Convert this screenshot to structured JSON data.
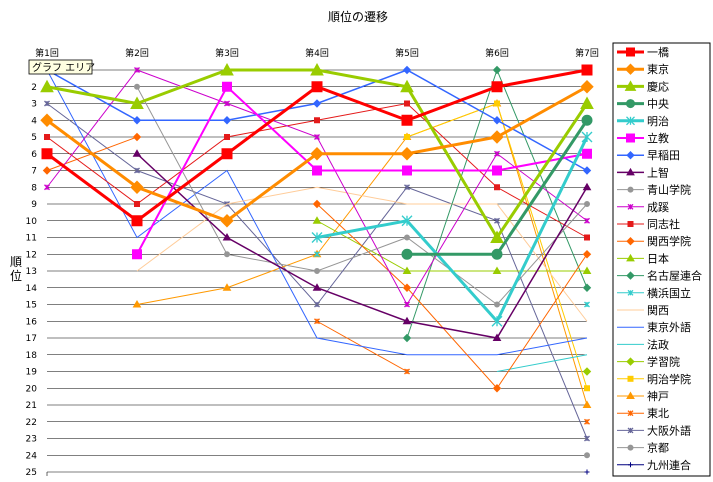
{
  "chart_data": {
    "type": "line",
    "title": "順位の遷移",
    "xlabel": "",
    "ylabel": "順位",
    "tooltip": "グラフ エリア",
    "categories": [
      "第1回",
      "第2回",
      "第3回",
      "第4回",
      "第5回",
      "第6回",
      "第7回"
    ],
    "ylim": [
      1,
      25
    ],
    "y_reversed": true,
    "y_ticks": [
      "1",
      "2",
      "3",
      "4",
      "5",
      "6",
      "7",
      "8",
      "9",
      "10",
      "11",
      "12",
      "13",
      "14",
      "15",
      "16",
      "17",
      "18",
      "19",
      "20",
      "21",
      "22",
      "23",
      "24",
      "25"
    ],
    "grid": true,
    "legend_position": "right",
    "series": [
      {
        "name": "一橋",
        "color": "#ff0000",
        "marker": "square",
        "width": 3,
        "values": [
          6,
          10,
          6,
          2,
          4,
          2,
          1
        ]
      },
      {
        "name": "東京",
        "color": "#ff8c00",
        "marker": "diamond",
        "width": 3,
        "values": [
          4,
          8,
          10,
          6,
          6,
          5,
          2
        ]
      },
      {
        "name": "慶応",
        "color": "#99cc00",
        "marker": "triangle",
        "width": 3,
        "values": [
          2,
          3,
          1,
          1,
          2,
          11,
          3
        ]
      },
      {
        "name": "中央",
        "color": "#339966",
        "marker": "circle",
        "width": 3,
        "values": [
          null,
          null,
          null,
          null,
          12,
          12,
          4
        ]
      },
      {
        "name": "明治",
        "color": "#33cccc",
        "marker": "star",
        "width": 3,
        "values": [
          null,
          null,
          null,
          11,
          10,
          16,
          5
        ]
      },
      {
        "name": "立教",
        "color": "#ff00ff",
        "marker": "square",
        "width": 2,
        "values": [
          null,
          12,
          2,
          7,
          7,
          7,
          6
        ]
      },
      {
        "name": "早稲田",
        "color": "#3366ff",
        "marker": "diamond",
        "width": 1.5,
        "values": [
          1,
          4,
          4,
          3,
          1,
          4,
          7
        ]
      },
      {
        "name": "上智",
        "color": "#660066",
        "marker": "triangle",
        "width": 1.5,
        "values": [
          null,
          6,
          11,
          14,
          16,
          17,
          8
        ]
      },
      {
        "name": "青山学院",
        "color": "#969696",
        "marker": "circle",
        "width": 1,
        "values": [
          null,
          2,
          12,
          13,
          11,
          15,
          9
        ]
      },
      {
        "name": "成蹊",
        "color": "#cc00cc",
        "marker": "star",
        "width": 1,
        "values": [
          8,
          1,
          3,
          5,
          15,
          6,
          10
        ]
      },
      {
        "name": "同志社",
        "color": "#e41a1a",
        "marker": "square",
        "width": 1,
        "values": [
          5,
          9,
          5,
          4,
          3,
          8,
          11
        ]
      },
      {
        "name": "関西学院",
        "color": "#ff6600",
        "marker": "diamond",
        "width": 1,
        "values": [
          7,
          5,
          null,
          9,
          14,
          20,
          12
        ]
      },
      {
        "name": "日本",
        "color": "#99cc00",
        "marker": "triangle",
        "width": 1,
        "values": [
          null,
          null,
          null,
          10,
          13,
          13,
          13
        ]
      },
      {
        "name": "名古屋連合",
        "color": "#339966",
        "marker": "diamond",
        "width": 1,
        "values": [
          null,
          null,
          null,
          null,
          17,
          1,
          14
        ]
      },
      {
        "name": "横浜国立",
        "color": "#33cccc",
        "marker": "star",
        "width": 1,
        "values": [
          null,
          null,
          null,
          12,
          null,
          null,
          15
        ]
      },
      {
        "name": "関西",
        "color": "#ffcc99",
        "marker": "none",
        "width": 1,
        "values": [
          null,
          13,
          9,
          8,
          9,
          9,
          16
        ]
      },
      {
        "name": "東京外語",
        "color": "#3366ff",
        "marker": "none",
        "width": 1,
        "values": [
          1,
          11,
          7,
          17,
          18,
          18,
          17
        ]
      },
      {
        "name": "法政",
        "color": "#33cccc",
        "marker": "none",
        "width": 1,
        "values": [
          null,
          null,
          null,
          null,
          null,
          19,
          18
        ]
      },
      {
        "name": "学習院",
        "color": "#99cc00",
        "marker": "diamond",
        "width": 1,
        "values": [
          null,
          null,
          null,
          null,
          null,
          null,
          19
        ]
      },
      {
        "name": "明治学院",
        "color": "#ffcc00",
        "marker": "square",
        "width": 1,
        "values": [
          null,
          null,
          null,
          null,
          5,
          3,
          20
        ]
      },
      {
        "name": "神戸",
        "color": "#ff9900",
        "marker": "triangle",
        "width": 1,
        "values": [
          null,
          15,
          14,
          12,
          5,
          3,
          21
        ]
      },
      {
        "name": "東北",
        "color": "#ff6600",
        "marker": "star",
        "width": 1,
        "values": [
          null,
          null,
          null,
          16,
          19,
          null,
          22
        ]
      },
      {
        "name": "大阪外語",
        "color": "#666699",
        "marker": "star",
        "width": 1,
        "values": [
          3,
          7,
          9,
          15,
          8,
          10,
          23
        ]
      },
      {
        "name": "京都",
        "color": "#969696",
        "marker": "circle",
        "width": 1,
        "values": [
          null,
          null,
          null,
          null,
          null,
          null,
          24
        ]
      },
      {
        "name": "九州連合",
        "color": "#000080",
        "marker": "plus",
        "width": 1,
        "values": [
          null,
          null,
          null,
          null,
          null,
          null,
          25
        ]
      }
    ]
  }
}
